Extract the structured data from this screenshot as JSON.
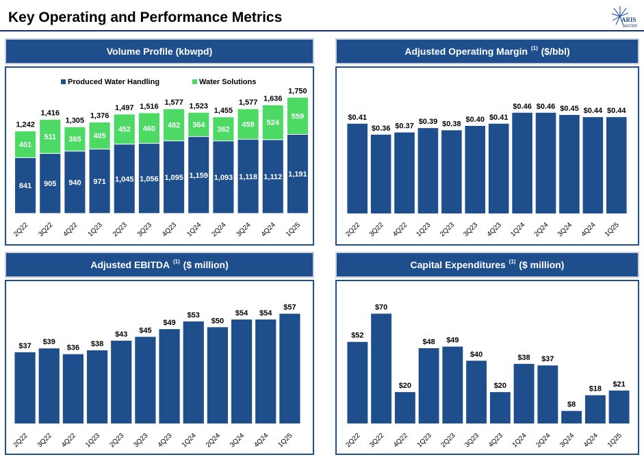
{
  "page": {
    "title": "Key Operating and Performance Metrics",
    "logo_text": "ARIS WATER"
  },
  "colors": {
    "primary": "#1f4e8c",
    "secondary": "#4cd964",
    "header_border": "#c9d0dc"
  },
  "chart_data": [
    {
      "id": "volume",
      "type": "bar",
      "stacked": true,
      "title": "Volume Profile (kbwpd)",
      "title_sup": "",
      "categories": [
        "2Q22",
        "3Q22",
        "4Q22",
        "1Q23",
        "2Q23",
        "3Q23",
        "4Q23",
        "1Q24",
        "2Q24",
        "3Q24",
        "4Q24",
        "1Q25"
      ],
      "series": [
        {
          "name": "Produced Water Handling",
          "values": [
            841,
            905,
            940,
            971,
            1045,
            1056,
            1095,
            1159,
            1093,
            1118,
            1112,
            1191
          ],
          "labels": [
            "841",
            "905",
            "940",
            "971",
            "1,045",
            "1,056",
            "1,095",
            "1,159",
            "1,093",
            "1,118",
            "1,112",
            "1,191"
          ]
        },
        {
          "name": "Water Solutions",
          "values": [
            401,
            511,
            365,
            405,
            452,
            460,
            482,
            364,
            362,
            459,
            524,
            559
          ],
          "labels": [
            "401",
            "511",
            "365",
            "405",
            "452",
            "460",
            "482",
            "364",
            "362",
            "459",
            "524",
            "559"
          ]
        }
      ],
      "totals": [
        "1,242",
        "1,416",
        "1,305",
        "1,376",
        "1,497",
        "1,516",
        "1,577",
        "1,523",
        "1,455",
        "1,577",
        "1,636",
        "1,750"
      ],
      "legend_position": "top-center",
      "ylim": [
        0,
        2000
      ]
    },
    {
      "id": "margin",
      "type": "bar",
      "title": "Adjusted Operating Margin",
      "title_sup": "(1)",
      "title_suffix": "($/bbl)",
      "categories": [
        "2Q22",
        "3Q22",
        "4Q22",
        "1Q23",
        "2Q23",
        "3Q23",
        "4Q23",
        "1Q24",
        "2Q24",
        "3Q24",
        "4Q24",
        "1Q25"
      ],
      "values": [
        0.41,
        0.36,
        0.37,
        0.39,
        0.38,
        0.4,
        0.41,
        0.46,
        0.46,
        0.45,
        0.44,
        0.44
      ],
      "labels": [
        "$0.41",
        "$0.36",
        "$0.37",
        "$0.39",
        "$0.38",
        "$0.40",
        "$0.41",
        "$0.46",
        "$0.46",
        "$0.45",
        "$0.44",
        "$0.44"
      ],
      "ylim": [
        0,
        0.6
      ]
    },
    {
      "id": "ebitda",
      "type": "bar",
      "title": "Adjusted EBITDA",
      "title_sup": "(1)",
      "title_suffix": "($ million)",
      "categories": [
        "2Q22",
        "3Q22",
        "4Q22",
        "1Q23",
        "2Q23",
        "3Q23",
        "4Q23",
        "1Q24",
        "2Q24",
        "3Q24",
        "4Q24",
        "1Q25"
      ],
      "values": [
        37,
        39,
        36,
        38,
        43,
        45,
        49,
        53,
        50,
        54,
        54,
        57
      ],
      "labels": [
        "$37",
        "$39",
        "$36",
        "$38",
        "$43",
        "$45",
        "$49",
        "$53",
        "$50",
        "$54",
        "$54",
        "$57"
      ],
      "ylim": [
        0,
        70
      ]
    },
    {
      "id": "capex",
      "type": "bar",
      "title": "Capital Expenditures",
      "title_sup": "(1)",
      "title_suffix": "($ million)",
      "categories": [
        "2Q22",
        "3Q22",
        "4Q22",
        "1Q23",
        "2Q23",
        "3Q23",
        "4Q23",
        "1Q24",
        "2Q24",
        "3Q24",
        "4Q24",
        "1Q25"
      ],
      "values": [
        52,
        70,
        20,
        48,
        49,
        40,
        20,
        38,
        37,
        8,
        18,
        21
      ],
      "labels": [
        "$52",
        "$70",
        "$20",
        "$48",
        "$49",
        "$40",
        "$20",
        "$38",
        "$37",
        "$8",
        "$18",
        "$21"
      ],
      "ylim": [
        0,
        75
      ]
    }
  ]
}
